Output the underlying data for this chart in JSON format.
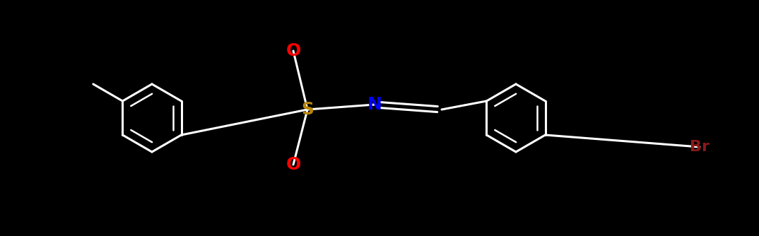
{
  "background": "#000000",
  "bond_color": "#FFFFFF",
  "lw": 2.2,
  "lw_inner": 1.8,
  "S_color": "#B8860B",
  "N_color": "#0000FF",
  "O_color": "#FF0000",
  "Br_color": "#8B1A1A",
  "C_color": "#FFFFFF",
  "font_size": 16,
  "font_weight": "bold",
  "figsize": [
    10.74,
    3.34
  ],
  "dpi": 100,
  "xlim": [
    0,
    1074
  ],
  "ylim": [
    0,
    334
  ]
}
